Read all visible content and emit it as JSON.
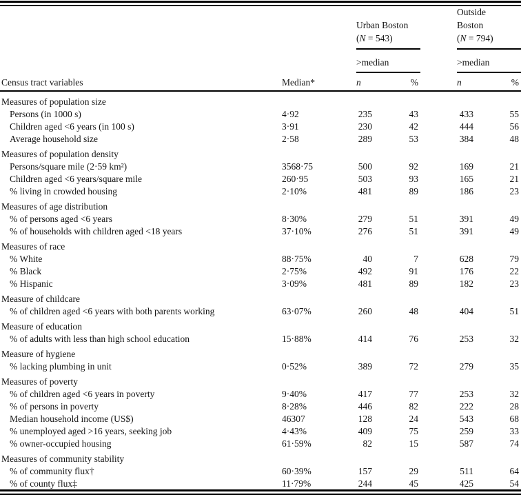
{
  "table": {
    "title_column": "Census tract variables",
    "median_header": "Median*",
    "groups": [
      {
        "name": "Urban Boston",
        "n_prefix": "(",
        "n_symbol": "N",
        "n_rest": " = 543)",
        "submedian_label": ">median",
        "col_n": "n",
        "col_pct": "%"
      },
      {
        "name": "Outside Boston",
        "n_prefix": "(",
        "n_symbol": "N",
        "n_rest": " = 794)",
        "submedian_label": ">median",
        "col_n": "n",
        "col_pct": "%"
      }
    ],
    "rows": [
      {
        "type": "section",
        "label": "Measures of population size"
      },
      {
        "type": "item",
        "label": "Persons (in 1000 s)",
        "median": "4·92",
        "un": "235",
        "up": "43",
        "on": "433",
        "op": "55"
      },
      {
        "type": "item",
        "label": "Children aged <6 years (in 100 s)",
        "median": "3·91",
        "un": "230",
        "up": "42",
        "on": "444",
        "op": "56"
      },
      {
        "type": "item",
        "label": "Average household size",
        "median": "2·58",
        "un": "289",
        "up": "53",
        "on": "384",
        "op": "48"
      },
      {
        "type": "section",
        "label": "Measures of population density"
      },
      {
        "type": "item",
        "label": "Persons/square mile (2·59 km²)",
        "median": "3568·75",
        "un": "500",
        "up": "92",
        "on": "169",
        "op": "21"
      },
      {
        "type": "item",
        "label": "Children aged <6 years/square mile",
        "median": "260·95",
        "un": "503",
        "up": "93",
        "on": "165",
        "op": "21"
      },
      {
        "type": "item",
        "label": "% living in crowded housing",
        "median": "2·10%",
        "un": "481",
        "up": "89",
        "on": "186",
        "op": "23"
      },
      {
        "type": "section",
        "label": "Measures of age distribution"
      },
      {
        "type": "item",
        "label": "% of persons aged <6 years",
        "median": "8·30%",
        "un": "279",
        "up": "51",
        "on": "391",
        "op": "49"
      },
      {
        "type": "item",
        "label": "% of households with children aged <18 years",
        "median": "37·10%",
        "un": "276",
        "up": "51",
        "on": "391",
        "op": "49"
      },
      {
        "type": "section",
        "label": "Measures of race"
      },
      {
        "type": "item",
        "label": "% White",
        "median": "88·75%",
        "un": "40",
        "up": "7",
        "on": "628",
        "op": "79"
      },
      {
        "type": "item",
        "label": "% Black",
        "median": "2·75%",
        "un": "492",
        "up": "91",
        "on": "176",
        "op": "22"
      },
      {
        "type": "item",
        "label": "% Hispanic",
        "median": "3·09%",
        "un": "481",
        "up": "89",
        "on": "182",
        "op": "23"
      },
      {
        "type": "section",
        "label": "Measure of childcare"
      },
      {
        "type": "item",
        "label": "% of children aged <6 years with both parents working",
        "median": "63·07%",
        "un": "260",
        "up": "48",
        "on": "404",
        "op": "51"
      },
      {
        "type": "section",
        "label": "Measure of education"
      },
      {
        "type": "item",
        "label": "% of adults with less than high school education",
        "median": "15·88%",
        "un": "414",
        "up": "76",
        "on": "253",
        "op": "32"
      },
      {
        "type": "section",
        "label": "Measure of hygiene"
      },
      {
        "type": "item",
        "label": "% lacking plumbing in unit",
        "median": "0·52%",
        "un": "389",
        "up": "72",
        "on": "279",
        "op": "35"
      },
      {
        "type": "section",
        "label": "Measures of poverty"
      },
      {
        "type": "item",
        "label": "% of children aged <6 years in poverty",
        "median": "9·40%",
        "un": "417",
        "up": "77",
        "on": "253",
        "op": "32"
      },
      {
        "type": "item",
        "label": "% of persons in poverty",
        "median": "8·28%",
        "un": "446",
        "up": "82",
        "on": "222",
        "op": "28"
      },
      {
        "type": "item",
        "label": "Median household income (US$)",
        "median": "46307",
        "un": "128",
        "up": "24",
        "on": "543",
        "op": "68"
      },
      {
        "type": "item",
        "label": "% unemployed aged >16 years, seeking job",
        "median": "4·43%",
        "un": "409",
        "up": "75",
        "on": "259",
        "op": "33"
      },
      {
        "type": "item",
        "label": "% owner-occupied housing",
        "median": "61·59%",
        "un": "82",
        "up": "15",
        "on": "587",
        "op": "74"
      },
      {
        "type": "section",
        "label": "Measures of community stability"
      },
      {
        "type": "item",
        "label": "% of community flux†",
        "median": "60·39%",
        "un": "157",
        "up": "29",
        "on": "511",
        "op": "64"
      },
      {
        "type": "item",
        "label": "% of county flux‡",
        "median": "11·79%",
        "un": "244",
        "up": "45",
        "on": "425",
        "op": "54"
      }
    ]
  }
}
